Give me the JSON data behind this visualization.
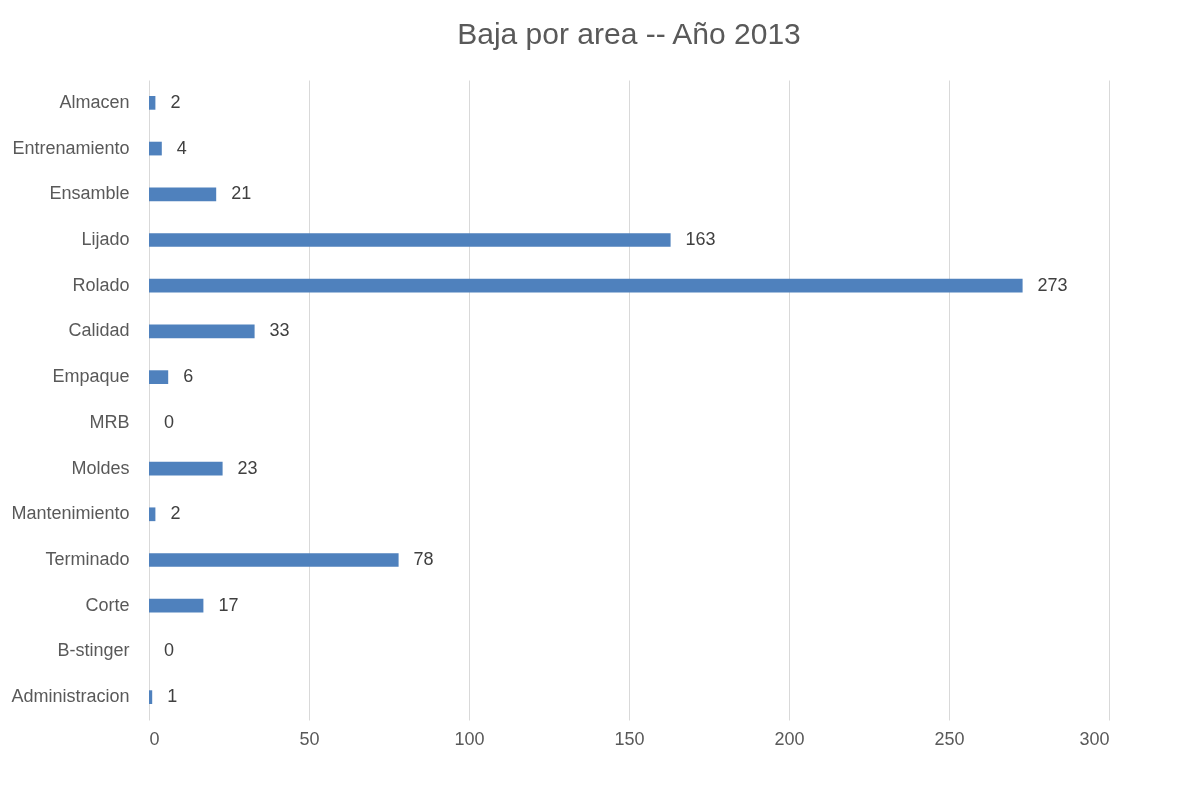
{
  "chart_data": {
    "type": "bar",
    "orientation": "horizontal",
    "title": "Baja por area -- Año 2013",
    "categories": [
      "Almacen",
      "Entrenamiento",
      "Ensamble",
      "Lijado",
      "Rolado",
      "Calidad",
      "Empaque",
      "MRB",
      "Moldes",
      "Mantenimiento",
      "Terminado",
      "Corte",
      "B-stinger",
      "Administracion"
    ],
    "values": [
      2,
      4,
      21,
      163,
      273,
      33,
      6,
      0,
      23,
      2,
      78,
      17,
      0,
      1
    ],
    "color": "#4f81bd",
    "xlim": [
      0,
      300
    ],
    "xticks": [
      0,
      50,
      100,
      150,
      200,
      250,
      300
    ],
    "grid": "x",
    "data_labels": true
  }
}
